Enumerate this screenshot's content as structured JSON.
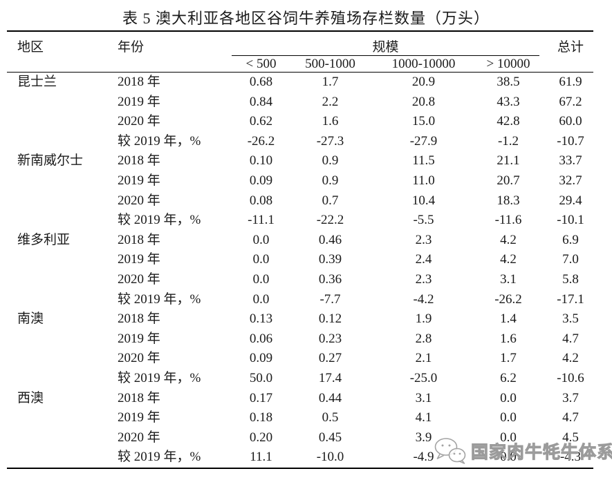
{
  "title": "表 5 澳大利亚各地区谷饲牛养殖场存栏数量（万头）",
  "table": {
    "headers": {
      "region": "地区",
      "year": "年份",
      "scale": "规模",
      "total": "总计",
      "scale_columns": [
        "< 500",
        "500-1000",
        "1000-10000",
        "> 10000"
      ]
    },
    "regions": [
      {
        "name": "昆士兰",
        "rows": [
          {
            "year": "2018 年",
            "values": [
              "0.68",
              "1.7",
              "20.9",
              "38.5",
              "61.9"
            ]
          },
          {
            "year": "2019 年",
            "values": [
              "0.84",
              "2.2",
              "20.8",
              "43.3",
              "67.2"
            ]
          },
          {
            "year": "2020 年",
            "values": [
              "0.62",
              "1.6",
              "15.0",
              "42.8",
              "60.0"
            ]
          },
          {
            "year": "较 2019 年，%",
            "values": [
              "-26.2",
              "-27.3",
              "-27.9",
              "-1.2",
              "-10.7"
            ]
          }
        ]
      },
      {
        "name": "新南威尔士",
        "rows": [
          {
            "year": "2018 年",
            "values": [
              "0.10",
              "0.9",
              "11.5",
              "21.1",
              "33.7"
            ]
          },
          {
            "year": "2019 年",
            "values": [
              "0.09",
              "0.9",
              "11.0",
              "20.7",
              "32.7"
            ]
          },
          {
            "year": "2020 年",
            "values": [
              "0.08",
              "0.7",
              "10.4",
              "18.3",
              "29.4"
            ]
          },
          {
            "year": "较 2019 年，%",
            "values": [
              "-11.1",
              "-22.2",
              "-5.5",
              "-11.6",
              "-10.1"
            ]
          }
        ]
      },
      {
        "name": "维多利亚",
        "rows": [
          {
            "year": "2018 年",
            "values": [
              "0.0",
              "0.46",
              "2.3",
              "4.2",
              "6.9"
            ]
          },
          {
            "year": "2019 年",
            "values": [
              "0.0",
              "0.39",
              "2.4",
              "4.2",
              "7.0"
            ]
          },
          {
            "year": "2020 年",
            "values": [
              "0.0",
              "0.36",
              "2.3",
              "3.1",
              "5.8"
            ]
          },
          {
            "year": "较 2019 年，%",
            "values": [
              "0.0",
              "-7.7",
              "-4.2",
              "-26.2",
              "-17.1"
            ]
          }
        ]
      },
      {
        "name": "南澳",
        "rows": [
          {
            "year": "2018 年",
            "values": [
              "0.13",
              "0.12",
              "1.9",
              "1.4",
              "3.5"
            ]
          },
          {
            "year": "2019 年",
            "values": [
              "0.06",
              "0.23",
              "2.8",
              "1.6",
              "4.7"
            ]
          },
          {
            "year": "2020 年",
            "values": [
              "0.09",
              "0.27",
              "2.1",
              "1.7",
              "4.2"
            ]
          },
          {
            "year": "较 2019 年，%",
            "values": [
              "50.0",
              "17.4",
              "-25.0",
              "6.2",
              "-10.6"
            ]
          }
        ]
      },
      {
        "name": "西澳",
        "rows": [
          {
            "year": "2018 年",
            "values": [
              "0.17",
              "0.44",
              "3.1",
              "0.0",
              "3.7"
            ]
          },
          {
            "year": "2019 年",
            "values": [
              "0.18",
              "0.5",
              "4.1",
              "0.0",
              "4.7"
            ]
          },
          {
            "year": "2020 年",
            "values": [
              "0.20",
              "0.45",
              "3.9",
              "0.0",
              "4.5"
            ]
          },
          {
            "year": "较 2019 年，%",
            "values": [
              "11.1",
              "-10.0",
              "-4.9",
              "0.0",
              "-4.3"
            ]
          }
        ]
      }
    ]
  },
  "watermark": {
    "icon": "wechat-icon",
    "text": "国家肉牛牦牛体系",
    "color": "#9b9b9b"
  }
}
